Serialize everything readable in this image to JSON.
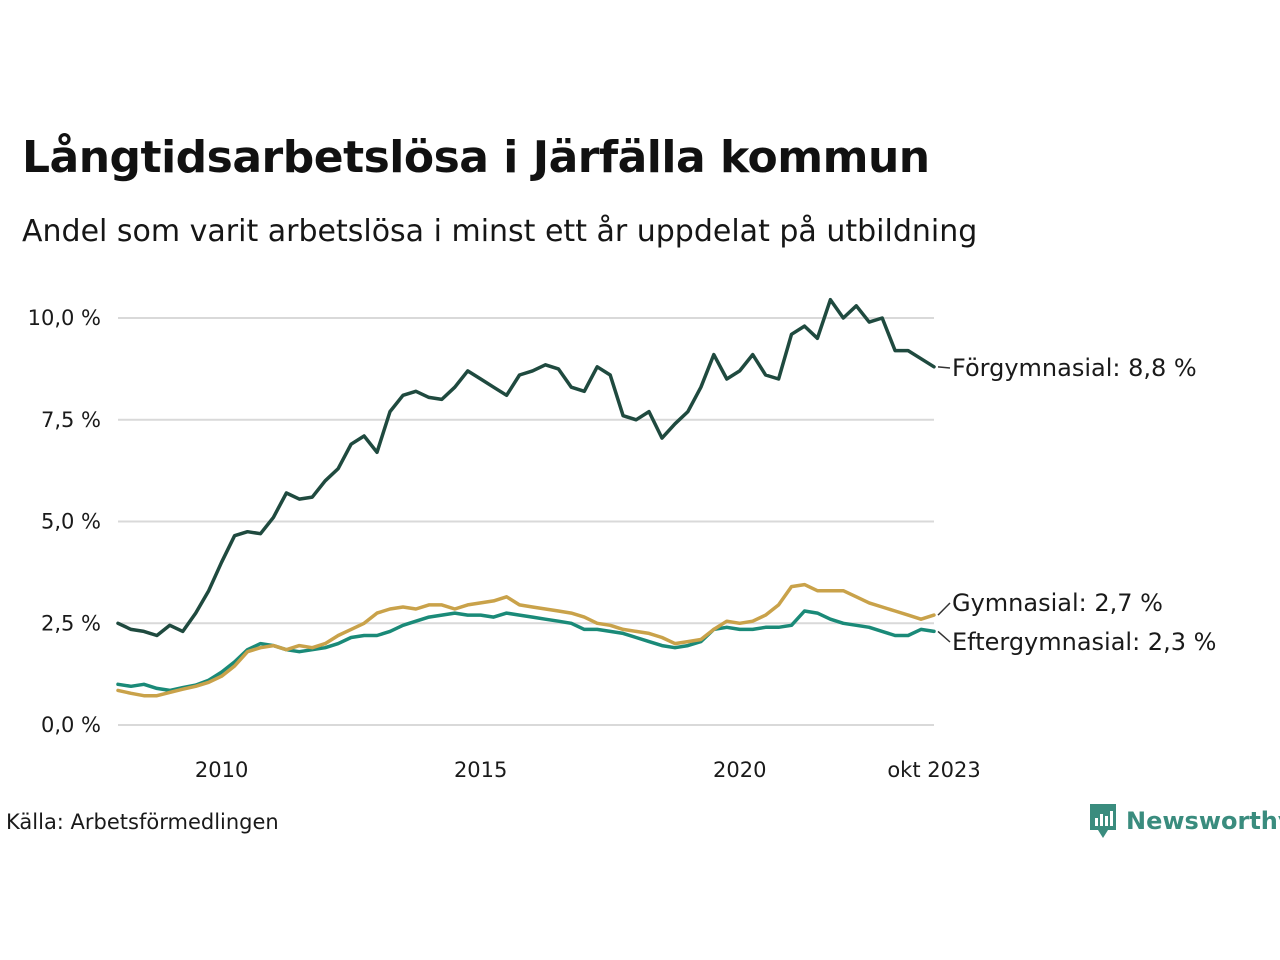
{
  "title": "Långtidsarbetslösa i Järfälla kommun",
  "subtitle": "Andel som varit arbetslösa i minst ett år uppdelat på utbildning",
  "source": "Källa: Arbetsförmedlingen",
  "brand": "Newsworthy",
  "chart_data": {
    "type": "line",
    "title": "Långtidsarbetslösa i Järfälla kommun",
    "subtitle": "Andel som varit arbetslösa i minst ett år uppdelat på utbildning",
    "xlabel": "",
    "ylabel": "",
    "ylim": [
      0,
      10.5
    ],
    "xlim": [
      2008.0,
      2023.75
    ],
    "y_ticks": [
      0,
      2.5,
      5,
      7.5,
      10
    ],
    "y_tick_labels": [
      "0,0 %",
      "2,5 %",
      "5,0 %",
      "7,5 %",
      "10,0 %"
    ],
    "x_ticks": [
      2010,
      2015,
      2020,
      2023.75
    ],
    "x_tick_labels": [
      "2010",
      "2015",
      "2020",
      "okt 2023"
    ],
    "grid": true,
    "series": [
      {
        "name": "Förgymnasial",
        "label": "Förgymnasial: 8,8 %",
        "color": "#1f4a3f",
        "x": [
          2008.0,
          2008.25,
          2008.5,
          2008.75,
          2009.0,
          2009.25,
          2009.5,
          2009.75,
          2010.0,
          2010.25,
          2010.5,
          2010.75,
          2011.0,
          2011.25,
          2011.5,
          2011.75,
          2012.0,
          2012.25,
          2012.5,
          2012.75,
          2013.0,
          2013.25,
          2013.5,
          2013.75,
          2014.0,
          2014.25,
          2014.5,
          2014.75,
          2015.0,
          2015.25,
          2015.5,
          2015.75,
          2016.0,
          2016.25,
          2016.5,
          2016.75,
          2017.0,
          2017.25,
          2017.5,
          2017.75,
          2018.0,
          2018.25,
          2018.5,
          2018.75,
          2019.0,
          2019.25,
          2019.5,
          2019.75,
          2020.0,
          2020.25,
          2020.5,
          2020.75,
          2021.0,
          2021.25,
          2021.5,
          2021.75,
          2022.0,
          2022.25,
          2022.5,
          2022.75,
          2023.0,
          2023.25,
          2023.5,
          2023.75
        ],
        "values": [
          2.5,
          2.35,
          2.3,
          2.2,
          2.45,
          2.3,
          2.75,
          3.3,
          4.0,
          4.65,
          4.75,
          4.7,
          5.1,
          5.7,
          5.55,
          5.6,
          6.0,
          6.3,
          6.9,
          7.1,
          6.7,
          7.7,
          8.1,
          8.2,
          8.05,
          8.0,
          8.3,
          8.7,
          8.5,
          8.3,
          8.1,
          8.6,
          8.7,
          8.85,
          8.75,
          8.3,
          8.2,
          8.8,
          8.6,
          7.6,
          7.5,
          7.7,
          7.05,
          7.4,
          7.7,
          8.3,
          9.1,
          8.5,
          8.7,
          9.1,
          8.6,
          8.5,
          9.6,
          9.8,
          9.5,
          10.45,
          10.0,
          10.3,
          9.9,
          10.0,
          9.2,
          9.2,
          9.0,
          8.8
        ]
      },
      {
        "name": "Gymnasial",
        "label": "Gymnasial: 2,7 %",
        "color": "#c9a24a",
        "x": [
          2008.0,
          2008.25,
          2008.5,
          2008.75,
          2009.0,
          2009.25,
          2009.5,
          2009.75,
          2010.0,
          2010.25,
          2010.5,
          2010.75,
          2011.0,
          2011.25,
          2011.5,
          2011.75,
          2012.0,
          2012.25,
          2012.5,
          2012.75,
          2013.0,
          2013.25,
          2013.5,
          2013.75,
          2014.0,
          2014.25,
          2014.5,
          2014.75,
          2015.0,
          2015.25,
          2015.5,
          2015.75,
          2016.0,
          2016.25,
          2016.5,
          2016.75,
          2017.0,
          2017.25,
          2017.5,
          2017.75,
          2018.0,
          2018.25,
          2018.5,
          2018.75,
          2019.0,
          2019.25,
          2019.5,
          2019.75,
          2020.0,
          2020.25,
          2020.5,
          2020.75,
          2021.0,
          2021.25,
          2021.5,
          2021.75,
          2022.0,
          2022.25,
          2022.5,
          2022.75,
          2023.0,
          2023.25,
          2023.5,
          2023.75
        ],
        "values": [
          0.85,
          0.78,
          0.72,
          0.72,
          0.8,
          0.88,
          0.95,
          1.05,
          1.2,
          1.45,
          1.8,
          1.9,
          1.95,
          1.85,
          1.95,
          1.9,
          2.0,
          2.2,
          2.35,
          2.5,
          2.75,
          2.85,
          2.9,
          2.85,
          2.95,
          2.95,
          2.85,
          2.95,
          3.0,
          3.05,
          3.15,
          2.95,
          2.9,
          2.85,
          2.8,
          2.75,
          2.65,
          2.5,
          2.45,
          2.35,
          2.3,
          2.25,
          2.15,
          2.0,
          2.05,
          2.1,
          2.35,
          2.55,
          2.5,
          2.55,
          2.7,
          2.95,
          3.4,
          3.45,
          3.3,
          3.3,
          3.3,
          3.15,
          3.0,
          2.9,
          2.8,
          2.7,
          2.6,
          2.7
        ]
      },
      {
        "name": "Eftergymnasial",
        "label": "Eftergymnasial: 2,3 %",
        "color": "#1a8a78",
        "x": [
          2008.0,
          2008.25,
          2008.5,
          2008.75,
          2009.0,
          2009.25,
          2009.5,
          2009.75,
          2010.0,
          2010.25,
          2010.5,
          2010.75,
          2011.0,
          2011.25,
          2011.5,
          2011.75,
          2012.0,
          2012.25,
          2012.5,
          2012.75,
          2013.0,
          2013.25,
          2013.5,
          2013.75,
          2014.0,
          2014.25,
          2014.5,
          2014.75,
          2015.0,
          2015.25,
          2015.5,
          2015.75,
          2016.0,
          2016.25,
          2016.5,
          2016.75,
          2017.0,
          2017.25,
          2017.5,
          2017.75,
          2018.0,
          2018.25,
          2018.5,
          2018.75,
          2019.0,
          2019.25,
          2019.5,
          2019.75,
          2020.0,
          2020.25,
          2020.5,
          2020.75,
          2021.0,
          2021.25,
          2021.5,
          2021.75,
          2022.0,
          2022.25,
          2022.5,
          2022.75,
          2023.0,
          2023.25,
          2023.5,
          2023.75
        ],
        "values": [
          1.0,
          0.95,
          1.0,
          0.9,
          0.85,
          0.92,
          0.98,
          1.1,
          1.3,
          1.55,
          1.85,
          2.0,
          1.95,
          1.85,
          1.8,
          1.85,
          1.9,
          2.0,
          2.15,
          2.2,
          2.2,
          2.3,
          2.45,
          2.55,
          2.65,
          2.7,
          2.75,
          2.7,
          2.7,
          2.65,
          2.75,
          2.7,
          2.65,
          2.6,
          2.55,
          2.5,
          2.35,
          2.35,
          2.3,
          2.25,
          2.15,
          2.05,
          1.95,
          1.9,
          1.95,
          2.05,
          2.35,
          2.4,
          2.35,
          2.35,
          2.4,
          2.4,
          2.45,
          2.8,
          2.75,
          2.6,
          2.5,
          2.45,
          2.4,
          2.3,
          2.2,
          2.2,
          2.35,
          2.3
        ]
      }
    ]
  }
}
